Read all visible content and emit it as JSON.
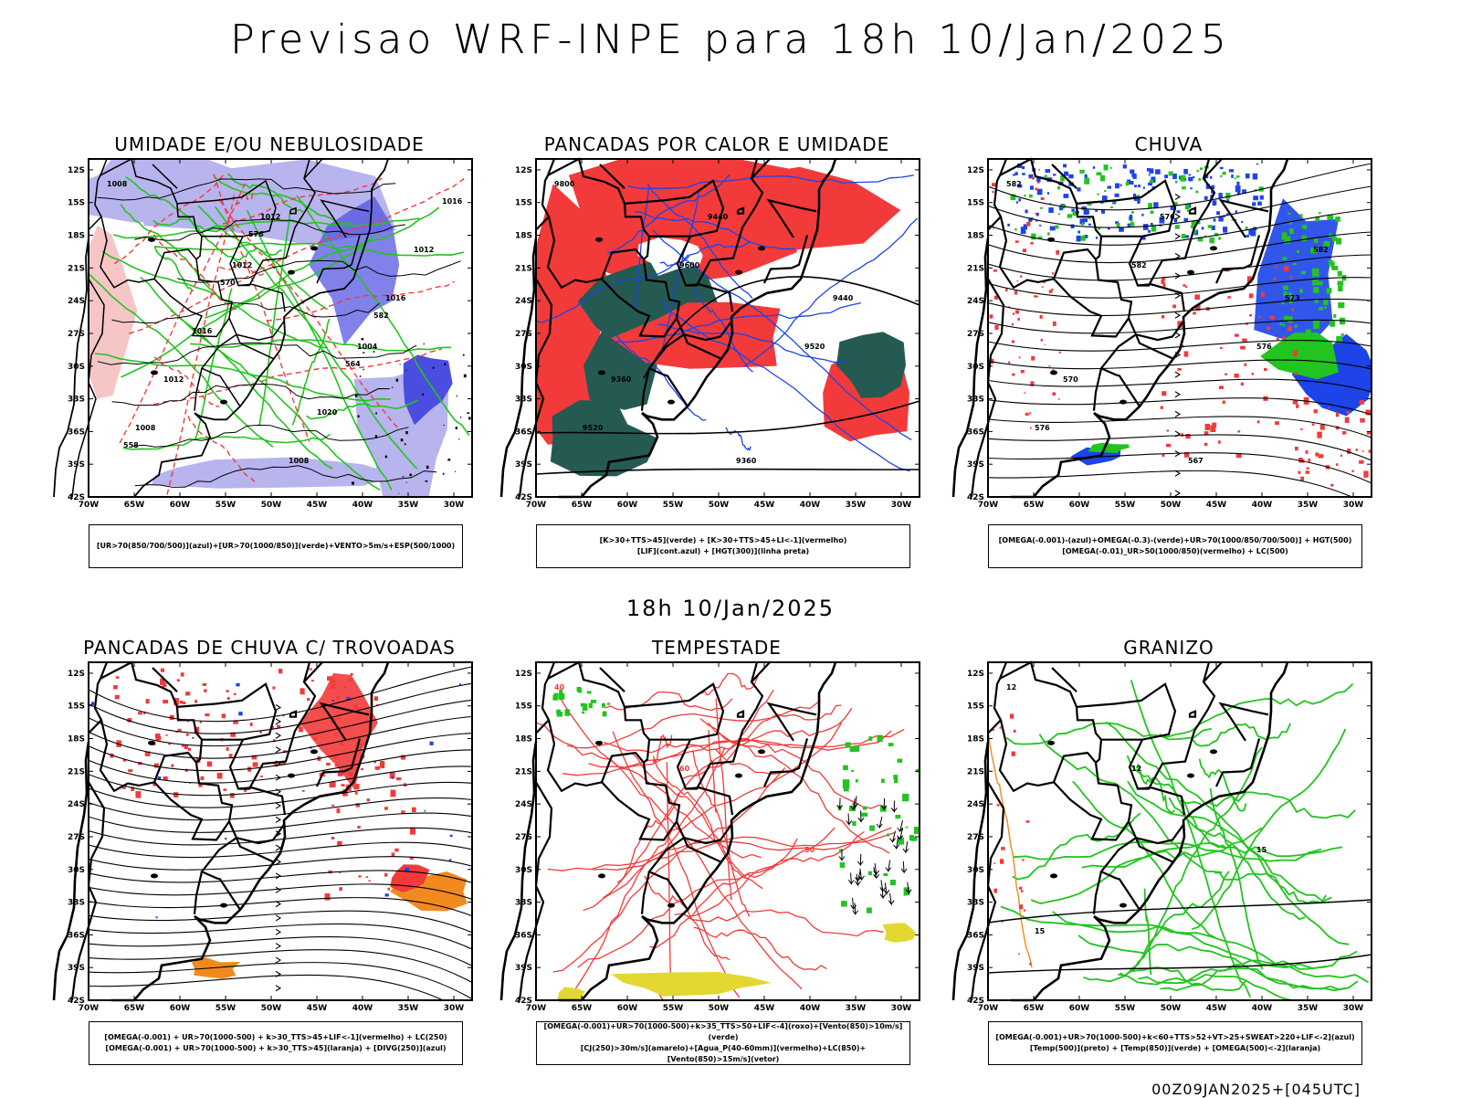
{
  "title": "Previsao WRF-INPE  para 18h 10/Jan/2025",
  "center_date": "18h 10/Jan/2025",
  "footer": "00Z09JAN2025+[045UTC]",
  "lat_labels": [
    "12S",
    "15S",
    "18S",
    "21S",
    "24S",
    "27S",
    "30S",
    "33S",
    "36S",
    "39S",
    "42S"
  ],
  "lon_labels": [
    "70W",
    "65W",
    "60W",
    "55W",
    "50W",
    "45W",
    "40W",
    "35W",
    "30W"
  ],
  "panels": [
    {
      "title": "UMIDADE E/OU NEBULOSIDADE",
      "legend": [
        "[UR>70(850/700/500)](azul)+[UR>70(1000/850)](verde)+VENTO>5m/s+ESP(500/1000)"
      ],
      "contour_labels": [
        "1008",
        "1012",
        "1004",
        "1008",
        "1012",
        "1016",
        "1012",
        "1008",
        "1012",
        "1016",
        "1020",
        "1016",
        "570",
        "564",
        "558",
        "576",
        "582"
      ]
    },
    {
      "title": "PANCADAS POR CALOR E UMIDADE",
      "legend": [
        "[K>30+TTS>45](verde) + [K>30+TTS>45+LI<-1](vermelho)",
        "[LIF](cont.azul) + [HGT(300)](linha preta)"
      ],
      "contour_labels": [
        "9800",
        "9600",
        "9520",
        "9520",
        "9440",
        "9440",
        "9360",
        "9360"
      ]
    },
    {
      "title": "CHUVA",
      "legend": [
        "[OMEGA(-0.001)-(azul)+OMEGA(-0.3)-(verde)+UR>70(1000/850/700/500)] + HGT(500)",
        "[OMEGA(-0.01)_UR>50(1000/850)(vermelho) + LC(500)"
      ],
      "contour_labels": [
        "582",
        "582",
        "576",
        "576",
        "576",
        "573",
        "570",
        "567",
        "582"
      ]
    },
    {
      "title": "PANCADAS DE CHUVA C/ TROVOADAS",
      "legend": [
        "[OMEGA(-0.001) + UR>70(1000-500) + k>30_TTS>45+LIF<-1](vermelho) + LC(250)",
        "[OMEGA(-0.001) + UR>70(1000-500) + k>30_TTS>45](laranja) + [DIVG(250)](azul)"
      ],
      "contour_labels": []
    },
    {
      "title": "TEMPESTADE",
      "legend": [
        "[OMEGA(-0.001)+UR>70(1000-500)+k>35_TTS>50+LIF<-4](roxo)+[Vento(850)>10m/s](verde)",
        "[CJ(250)>30m/s](amarelo)+[Agua_P(40-60mm)](vermelho)+LC(850)+[Vento(850)>15m/s](vetor)"
      ],
      "contour_labels": [
        "40",
        "60",
        "50"
      ]
    },
    {
      "title": "GRANIZO",
      "legend": [
        "[OMEGA(-0.001)+UR>70(1000-500)+k<60+TTS>52+VT>25+SWEAT>220+LIF<-2](azul)",
        "[Temp(500)](preto) + [Temp(850)](verde) + [OMEGA(500)<-2](laranja)"
      ],
      "contour_labels": [
        "12",
        "12",
        "15",
        "15"
      ]
    }
  ],
  "colors": {
    "border": "#000000",
    "humidity_blue": "#b7b4ee",
    "humidity_blue_dark": "#4a4de0",
    "green": "#22c41f",
    "red": "#f23a3a",
    "dark_teal": "#255a52",
    "orange": "#f08a1e",
    "yellow": "#e3d832",
    "blue": "#1c44e8"
  }
}
